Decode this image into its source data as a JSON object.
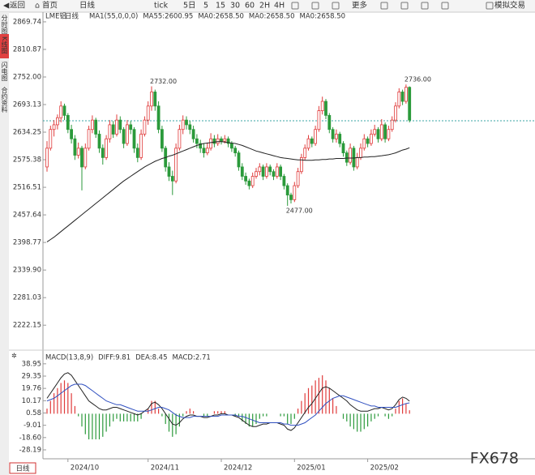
{
  "toolbar": [
    "返回",
    "首页",
    "日线",
    "tick",
    "5日",
    "5",
    "15",
    "30",
    "60",
    "2H",
    "4H",
    "更多",
    "模拟交易"
  ],
  "sidebar": [
    "分时图",
    "K线图",
    "闪电图",
    "合约资料"
  ],
  "chart_data": {
    "type": "candlestick",
    "symbol": "LME铝",
    "period": "日线",
    "legend": [
      {
        "text": "MA1(55,0,0,0)",
        "color": "#333333"
      },
      {
        "text": "MA55:2600.95",
        "color": "#222222"
      },
      {
        "text": "MA0:2658.50",
        "color": "#d23cd2"
      },
      {
        "text": "MA0:2658.50",
        "color": "#d23cd2"
      },
      {
        "text": "MA0:2658.50",
        "color": "#e8a030"
      }
    ],
    "up_color": "#e03c3c",
    "down_color": "#2b9a3b",
    "ylim": [
      2200,
      2880
    ],
    "yticks": [
      2869.74,
      2810.87,
      {
        "value": 2752,
        "label": "2752.00"
      },
      2693.13,
      2634.25,
      2575.38,
      2516.51,
      2457.64,
      2398.77,
      {
        "value": 2339.9,
        "label": "2339.90"
      },
      2281.03,
      2222.15
    ],
    "price_line": 2658.5,
    "annotations": [
      {
        "value": 2732,
        "label": "2732.00"
      },
      {
        "value": 2736,
        "label": "2736.00"
      },
      {
        "value": 2477,
        "label": "2477.00"
      }
    ],
    "categories": [
      null,
      null,
      null,
      null,
      null,
      null,
      "2024/10",
      null,
      null,
      null,
      null,
      null,
      null,
      null,
      null,
      null,
      null,
      null,
      null,
      null,
      null,
      null,
      null,
      null,
      null,
      null,
      null,
      null,
      null,
      "2024/11",
      null,
      null,
      null,
      null,
      null,
      null,
      null,
      null,
      null,
      null,
      null,
      null,
      null,
      null,
      null,
      null,
      null,
      null,
      null,
      null,
      "2024/12",
      null,
      null,
      null,
      null,
      null,
      null,
      null,
      null,
      null,
      null,
      null,
      null,
      null,
      null,
      null,
      null,
      null,
      null,
      null,
      null,
      "2025/01",
      null,
      null,
      null,
      null,
      null,
      null,
      null,
      null,
      null,
      null,
      null,
      null,
      null,
      null,
      null,
      null,
      null,
      null,
      null,
      null,
      "2025/02",
      null,
      null,
      null,
      null,
      null,
      null,
      null,
      null,
      null,
      null,
      null
    ],
    "candles": [
      [
        2560,
        2615,
        2550,
        2600
      ],
      [
        2600,
        2648,
        2595,
        2640
      ],
      [
        2640,
        2660,
        2625,
        2650
      ],
      [
        2650,
        2672,
        2640,
        2665
      ],
      [
        2665,
        2700,
        2655,
        2690
      ],
      [
        2690,
        2695,
        2660,
        2670
      ],
      [
        2670,
        2675,
        2632,
        2640
      ],
      [
        2640,
        2650,
        2610,
        2620
      ],
      [
        2620,
        2628,
        2575,
        2585
      ],
      [
        2585,
        2612,
        2578,
        2600
      ],
      [
        2600,
        2605,
        2510,
        2560
      ],
      [
        2560,
        2610,
        2555,
        2600
      ],
      [
        2600,
        2648,
        2595,
        2640
      ],
      [
        2640,
        2670,
        2632,
        2660
      ],
      [
        2660,
        2665,
        2622,
        2630
      ],
      [
        2630,
        2638,
        2590,
        2600
      ],
      [
        2600,
        2608,
        2565,
        2580
      ],
      [
        2580,
        2628,
        2575,
        2620
      ],
      [
        2620,
        2660,
        2612,
        2650
      ],
      [
        2650,
        2658,
        2622,
        2630
      ],
      [
        2630,
        2672,
        2625,
        2660
      ],
      [
        2660,
        2668,
        2632,
        2640
      ],
      [
        2640,
        2645,
        2600,
        2610
      ],
      [
        2610,
        2660,
        2605,
        2650
      ],
      [
        2650,
        2658,
        2630,
        2640
      ],
      [
        2640,
        2645,
        2590,
        2600
      ],
      [
        2600,
        2610,
        2570,
        2580
      ],
      [
        2580,
        2640,
        2575,
        2630
      ],
      [
        2630,
        2668,
        2625,
        2660
      ],
      [
        2660,
        2700,
        2650,
        2690
      ],
      [
        2690,
        2732,
        2680,
        2720
      ],
      [
        2720,
        2725,
        2680,
        2690
      ],
      [
        2690,
        2700,
        2632,
        2640
      ],
      [
        2640,
        2648,
        2592,
        2600
      ],
      [
        2600,
        2605,
        2550,
        2560
      ],
      [
        2560,
        2570,
        2530,
        2540
      ],
      [
        2540,
        2552,
        2500,
        2530
      ],
      [
        2530,
        2610,
        2525,
        2600
      ],
      [
        2600,
        2650,
        2595,
        2640
      ],
      [
        2640,
        2670,
        2630,
        2660
      ],
      [
        2660,
        2668,
        2640,
        2650
      ],
      [
        2650,
        2658,
        2630,
        2640
      ],
      [
        2640,
        2648,
        2612,
        2620
      ],
      [
        2620,
        2630,
        2600,
        2610
      ],
      [
        2610,
        2618,
        2590,
        2600
      ],
      [
        2600,
        2610,
        2580,
        2590
      ],
      [
        2590,
        2612,
        2585,
        2600
      ],
      [
        2600,
        2632,
        2595,
        2620
      ],
      [
        2620,
        2628,
        2602,
        2610
      ],
      [
        2610,
        2630,
        2605,
        2620
      ],
      [
        2620,
        2625,
        2608,
        2615
      ],
      [
        2615,
        2628,
        2610,
        2620
      ],
      [
        2620,
        2625,
        2602,
        2610
      ],
      [
        2610,
        2615,
        2592,
        2600
      ],
      [
        2600,
        2605,
        2582,
        2590
      ],
      [
        2590,
        2595,
        2552,
        2560
      ],
      [
        2560,
        2568,
        2532,
        2540
      ],
      [
        2540,
        2548,
        2522,
        2530
      ],
      [
        2530,
        2535,
        2512,
        2520
      ],
      [
        2520,
        2548,
        2515,
        2540
      ],
      [
        2540,
        2558,
        2535,
        2550
      ],
      [
        2550,
        2568,
        2542,
        2560
      ],
      [
        2560,
        2565,
        2532,
        2540
      ],
      [
        2540,
        2568,
        2535,
        2560
      ],
      [
        2560,
        2565,
        2542,
        2550
      ],
      [
        2550,
        2555,
        2532,
        2540
      ],
      [
        2540,
        2568,
        2535,
        2560
      ],
      [
        2560,
        2565,
        2532,
        2540
      ],
      [
        2540,
        2545,
        2512,
        2520
      ],
      [
        2520,
        2525,
        2477,
        2500
      ],
      [
        2500,
        2505,
        2482,
        2490
      ],
      [
        2490,
        2528,
        2485,
        2520
      ],
      [
        2520,
        2558,
        2515,
        2550
      ],
      [
        2550,
        2588,
        2545,
        2580
      ],
      [
        2580,
        2608,
        2575,
        2600
      ],
      [
        2600,
        2628,
        2595,
        2620
      ],
      [
        2620,
        2625,
        2602,
        2610
      ],
      [
        2610,
        2648,
        2605,
        2640
      ],
      [
        2640,
        2690,
        2635,
        2680
      ],
      [
        2680,
        2710,
        2672,
        2700
      ],
      [
        2700,
        2705,
        2662,
        2670
      ],
      [
        2670,
        2675,
        2632,
        2640
      ],
      [
        2640,
        2645,
        2612,
        2620
      ],
      [
        2620,
        2640,
        2612,
        2630
      ],
      [
        2630,
        2635,
        2602,
        2610
      ],
      [
        2610,
        2615,
        2582,
        2590
      ],
      [
        2590,
        2595,
        2562,
        2570
      ],
      [
        2570,
        2610,
        2565,
        2600
      ],
      [
        2600,
        2605,
        2552,
        2560
      ],
      [
        2560,
        2590,
        2555,
        2580
      ],
      [
        2580,
        2610,
        2575,
        2600
      ],
      [
        2600,
        2630,
        2595,
        2620
      ],
      [
        2620,
        2625,
        2602,
        2610
      ],
      [
        2610,
        2640,
        2605,
        2630
      ],
      [
        2630,
        2650,
        2625,
        2640
      ],
      [
        2640,
        2645,
        2612,
        2620
      ],
      [
        2620,
        2662,
        2615,
        2650
      ],
      [
        2650,
        2655,
        2612,
        2620
      ],
      [
        2620,
        2648,
        2615,
        2640
      ],
      [
        2640,
        2668,
        2635,
        2660
      ],
      [
        2660,
        2698,
        2655,
        2690
      ],
      [
        2690,
        2728,
        2685,
        2720
      ],
      [
        2720,
        2725,
        2692,
        2700
      ],
      [
        2700,
        2736,
        2695,
        2730
      ],
      [
        2730,
        2732,
        2655,
        2660
      ]
    ],
    "ma55": {
      "color": "#222222",
      "values": [
        2400,
        2405,
        2410,
        2416,
        2422,
        2428,
        2434,
        2440,
        2446,
        2452,
        2458,
        2464,
        2470,
        2476,
        2482,
        2488,
        2494,
        2500,
        2506,
        2512,
        2518,
        2524,
        2530,
        2535,
        2540,
        2545,
        2550,
        2555,
        2560,
        2564,
        2568,
        2572,
        2575,
        2578,
        2580,
        2583,
        2585,
        2588,
        2591,
        2594,
        2597,
        2600,
        2603,
        2606,
        2608,
        2610,
        2611,
        2612,
        2613,
        2614,
        2614,
        2613,
        2612,
        2611,
        2610,
        2608,
        2606,
        2603,
        2600,
        2597,
        2594,
        2592,
        2590,
        2588,
        2586,
        2584,
        2582,
        2580,
        2579,
        2578,
        2577,
        2576,
        2575,
        2575,
        2574,
        2574,
        2574,
        2575,
        2575,
        2576,
        2576,
        2577,
        2577,
        2578,
        2578,
        2578,
        2579,
        2579,
        2579,
        2580,
        2580,
        2581,
        2581,
        2582,
        2582,
        2583,
        2584,
        2585,
        2586,
        2588,
        2590,
        2593,
        2596,
        2598,
        2600.95
      ]
    },
    "macd": {
      "legend": [
        {
          "text": "MACD(13,8,9)",
          "color": "#333333"
        },
        {
          "text": "DIFF:9.81",
          "color": "#222222"
        },
        {
          "text": "DEA:8.45",
          "color": "#3050c0"
        },
        {
          "text": "MACD:2.71",
          "color": "#d23cd2"
        }
      ],
      "ylim": [
        -32,
        42
      ],
      "yticks": [
        38.95,
        29.35,
        19.76,
        10.17,
        0.58,
        -9.01,
        {
          "value": -18.6,
          "label": "-18.60"
        },
        -28.19
      ],
      "diff": {
        "color": "#222222",
        "values": [
          12,
          16,
          20,
          24,
          28,
          31,
          32,
          30,
          26,
          22,
          18,
          14,
          10,
          8,
          6,
          4,
          3,
          3,
          4,
          5,
          5,
          4,
          3,
          2,
          1,
          0,
          -1,
          0,
          2,
          4,
          8,
          9,
          7,
          4,
          0,
          -4,
          -8,
          -9,
          -7,
          -4,
          -2,
          -1,
          -1,
          -2,
          -2,
          -3,
          -3,
          -2,
          -1,
          -1,
          0,
          0,
          -1,
          -1,
          -2,
          -3,
          -5,
          -7,
          -9,
          -10,
          -10,
          -9,
          -8,
          -8,
          -7,
          -7,
          -7,
          -8,
          -9,
          -12,
          -13,
          -11,
          -7,
          -3,
          1,
          5,
          8,
          12,
          16,
          20,
          21,
          20,
          18,
          16,
          14,
          12,
          10,
          7,
          5,
          3,
          2,
          2,
          2,
          3,
          4,
          4,
          5,
          4,
          3,
          4,
          7,
          11,
          13,
          12,
          9.81
        ]
      },
      "dea": {
        "color": "#3050c0",
        "values": [
          10,
          11,
          12,
          14,
          16,
          18,
          20,
          22,
          23,
          23,
          23,
          22,
          20,
          18,
          16,
          14,
          12,
          10,
          9,
          8,
          7,
          7,
          6,
          5,
          4,
          3,
          2,
          2,
          2,
          2,
          3,
          4,
          5,
          5,
          4,
          3,
          1,
          -1,
          -2,
          -3,
          -3,
          -3,
          -2,
          -2,
          -2,
          -2,
          -2,
          -2,
          -2,
          -2,
          -1,
          -1,
          -1,
          -1,
          -1,
          -2,
          -2,
          -3,
          -4,
          -5,
          -6,
          -7,
          -7,
          -7,
          -7,
          -7,
          -7,
          -7,
          -8,
          -8,
          -9,
          -9,
          -9,
          -8,
          -7,
          -5,
          -3,
          -1,
          2,
          5,
          8,
          10,
          12,
          13,
          14,
          14,
          13,
          12,
          11,
          10,
          9,
          8,
          7,
          6,
          6,
          5,
          5,
          5,
          5,
          5,
          5,
          6,
          7,
          8,
          8.45
        ]
      },
      "hist": {
        "values": [
          4,
          10,
          16,
          20,
          24,
          26,
          24,
          16,
          6,
          -2,
          -10,
          -16,
          -20,
          -20,
          -20,
          -20,
          -18,
          -14,
          -10,
          -6,
          -4,
          -6,
          -6,
          -6,
          -6,
          -6,
          -6,
          -4,
          0,
          4,
          10,
          10,
          4,
          -2,
          -8,
          -14,
          -18,
          -16,
          -10,
          -2,
          2,
          4,
          2,
          0,
          0,
          -2,
          -2,
          0,
          2,
          2,
          2,
          2,
          0,
          0,
          -2,
          -2,
          -6,
          -8,
          -10,
          -10,
          -8,
          -4,
          -2,
          -2,
          0,
          0,
          0,
          -2,
          -2,
          -8,
          -8,
          -4,
          4,
          10,
          16,
          20,
          22,
          26,
          28,
          30,
          26,
          20,
          12,
          6,
          0,
          -4,
          -6,
          -10,
          -12,
          -14,
          -14,
          -12,
          -10,
          -6,
          -4,
          -2,
          0,
          -2,
          -4,
          -2,
          4,
          10,
          12,
          8,
          2.71
        ]
      }
    },
    "watermark": "FX678"
  }
}
